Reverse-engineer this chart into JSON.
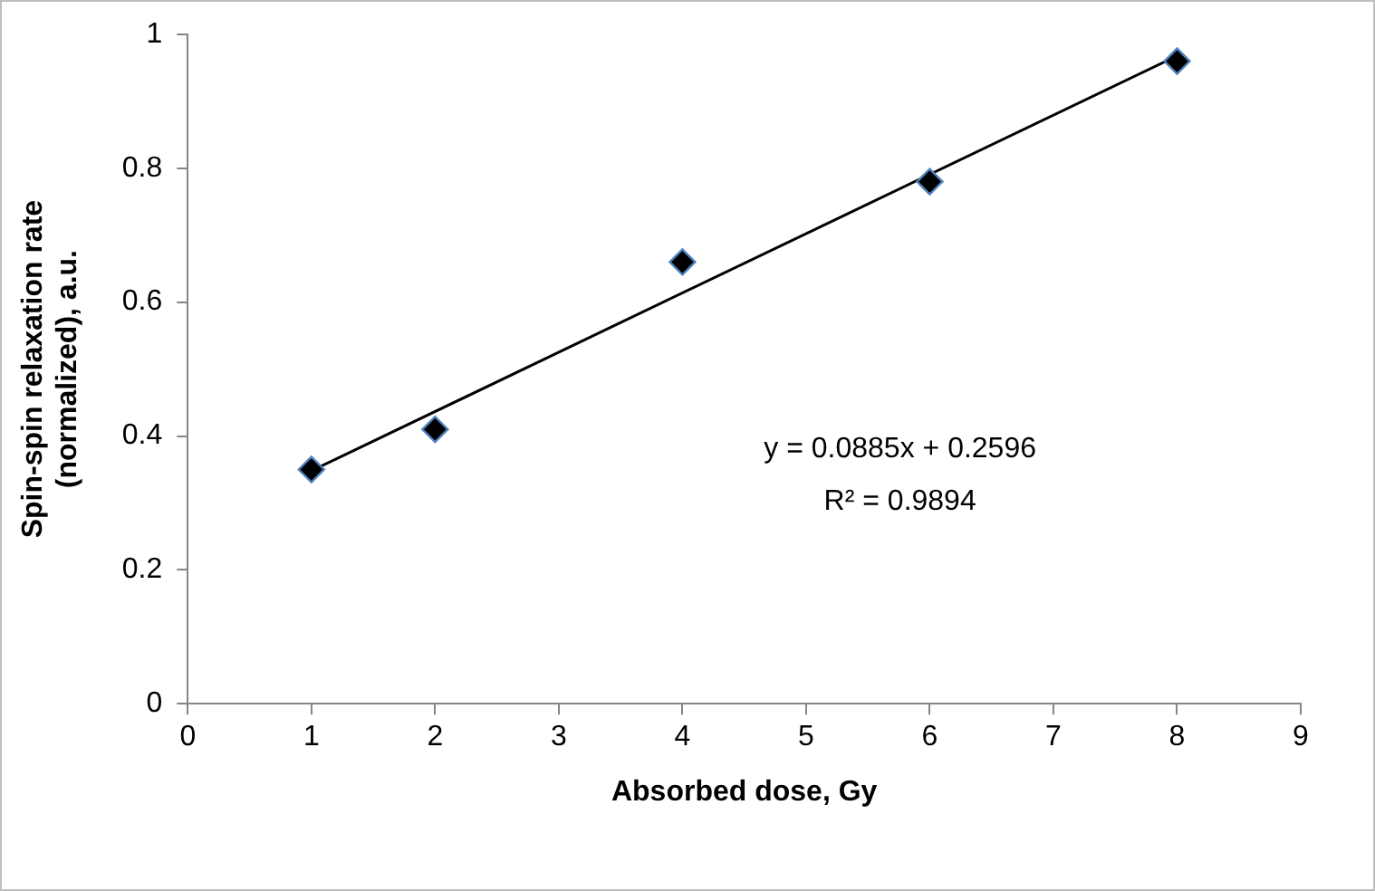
{
  "chart_data": {
    "type": "scatter",
    "xlabel": "Absorbed dose, Gy",
    "ylabel": "Spin-spin relaxation rate\n(normalized), a.u.",
    "series": [
      {
        "color": "#000000",
        "x": [
          1,
          2,
          4,
          6,
          8
        ],
        "values": [
          0.35,
          0.41,
          0.66,
          0.78,
          0.96
        ],
        "marker": "diamond"
      },
      {
        "type": "line",
        "color": "#000000",
        "x": [
          1,
          8
        ],
        "values": [
          0.348,
          0.968
        ],
        "marker": "none",
        "line_style": "solid"
      }
    ],
    "xlim": [
      0,
      9
    ],
    "xticks": [
      0,
      1,
      2,
      3,
      4,
      5,
      6,
      7,
      8,
      9
    ],
    "ylim": [
      0,
      1
    ],
    "yticks": [
      0,
      0.2,
      0.4,
      0.6,
      0.8,
      1
    ],
    "grid": false,
    "legend": false,
    "annotations": [
      "y = 0.0885x + 0.2596",
      "R² = 0.9894"
    ]
  }
}
